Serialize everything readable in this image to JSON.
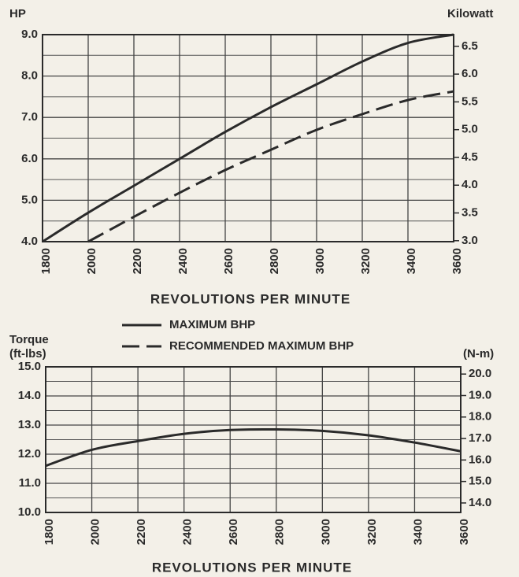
{
  "chart_data": [
    {
      "type": "line",
      "y_label": "HP",
      "y2_label": "Kilowatt",
      "x_label": "REVOLUTIONS PER MINUTE",
      "x": [
        1800,
        2000,
        2200,
        2400,
        2600,
        2800,
        3000,
        3200,
        3400,
        3600
      ],
      "series": [
        {
          "name": "MAXIMUM BHP",
          "color": "#2a2a2a",
          "style": "solid",
          "values": [
            4.0,
            4.7,
            5.35,
            6.0,
            6.65,
            7.25,
            7.8,
            8.35,
            8.8,
            9.0
          ]
        },
        {
          "name": "RECOMMENDED MAXIMUM BHP",
          "color": "#2a2a2a",
          "style": "dashed",
          "values": [
            null,
            4.0,
            4.6,
            5.18,
            5.73,
            6.22,
            6.7,
            7.08,
            7.42,
            7.63
          ]
        }
      ],
      "xlim": [
        1800,
        3600
      ],
      "xticks": [
        1800,
        2000,
        2200,
        2400,
        2600,
        2800,
        3000,
        3200,
        3400,
        3600
      ],
      "ylim": [
        4,
        9
      ],
      "yticks": [
        {
          "value": 4,
          "label": "4.0"
        },
        {
          "value": 5,
          "label": "5.0"
        },
        {
          "value": 6,
          "label": "6.0"
        },
        {
          "value": 7,
          "label": "7.0"
        },
        {
          "value": 8,
          "label": "8.0"
        },
        {
          "value": 9,
          "label": "9.0"
        }
      ],
      "y2lim": [
        2.983,
        6.711
      ],
      "y2ticks": [
        {
          "value": 3,
          "label": "3.0"
        },
        {
          "value": 3.5,
          "label": "3.5"
        },
        {
          "value": 4,
          "label": "4.0"
        },
        {
          "value": 4.5,
          "label": "4.5"
        },
        {
          "value": 5,
          "label": "5.0"
        },
        {
          "value": 5.5,
          "label": "5.5"
        },
        {
          "value": 6,
          "label": "6.0"
        },
        {
          "value": 6.5,
          "label": "6.5"
        }
      ],
      "grid": true,
      "legend": "bottom"
    },
    {
      "type": "line",
      "y_label": [
        "Torque",
        "(ft-lbs)"
      ],
      "y2_label": "(N-m)",
      "x_label": "REVOLUTIONS PER MINUTE",
      "x": [
        1800,
        2000,
        2200,
        2400,
        2600,
        2800,
        3000,
        3200,
        3400,
        3600
      ],
      "values": [
        11.6,
        12.15,
        12.45,
        12.7,
        12.83,
        12.85,
        12.8,
        12.65,
        12.4,
        12.1
      ],
      "color": "#2a2a2a",
      "xlim": [
        1800,
        3600
      ],
      "xticks": [
        1800,
        2000,
        2200,
        2400,
        2600,
        2800,
        3000,
        3200,
        3400,
        3600
      ],
      "ylim": [
        10,
        15
      ],
      "yticks": [
        {
          "value": 10,
          "label": "10.0"
        },
        {
          "value": 11,
          "label": "11.0"
        },
        {
          "value": 12,
          "label": "12.0"
        },
        {
          "value": 13,
          "label": "13.0"
        },
        {
          "value": 14,
          "label": "14.0"
        },
        {
          "value": 15,
          "label": "15.0"
        }
      ],
      "y2lim": [
        13.558,
        20.337
      ],
      "y2ticks": [
        {
          "value": 14,
          "label": "14.0"
        },
        {
          "value": 15,
          "label": "15.0"
        },
        {
          "value": 16,
          "label": "16.0"
        },
        {
          "value": 17,
          "label": "17.0"
        },
        {
          "value": 18,
          "label": "18.0"
        },
        {
          "value": 19,
          "label": "19.0"
        },
        {
          "value": 20,
          "label": "20.0"
        }
      ],
      "grid": true
    }
  ]
}
